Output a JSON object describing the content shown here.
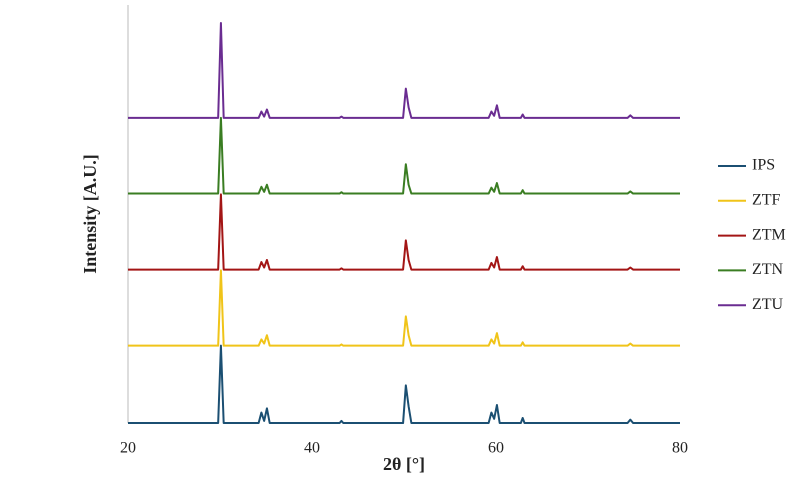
{
  "chart_data": {
    "type": "line",
    "x_label": "2θ [°]",
    "y_label": "Intensity [A.U.]",
    "xlim": [
      20,
      80
    ],
    "xticks": [
      20,
      40,
      60,
      80
    ],
    "ylim": [
      0,
      100
    ],
    "grid": false,
    "legend": "right",
    "x": [
      20,
      29.8,
      30.1,
      30.4,
      34.2,
      34.5,
      34.8,
      35.1,
      35.4,
      43,
      43.2,
      43.4,
      49.9,
      50.2,
      50.5,
      50.8,
      59.2,
      59.5,
      59.8,
      60.1,
      60.4,
      62.7,
      62.9,
      63.1,
      74.3,
      74.6,
      74.9,
      80
    ],
    "series": [
      {
        "name": "IPS",
        "color": "#1b4f72",
        "values": [
          0,
          0,
          18.5,
          0,
          0,
          2.5,
          0.5,
          3.5,
          0,
          0,
          0.5,
          0,
          0,
          9,
          4,
          0,
          0,
          2.5,
          1,
          4.3,
          0,
          0,
          1.2,
          0,
          0,
          0.8,
          0,
          0
        ]
      },
      {
        "name": "ZTF",
        "color": "#f0c419",
        "values": [
          18.5,
          18.5,
          36.5,
          18.5,
          18.5,
          20,
          19,
          21,
          18.5,
          18.5,
          18.8,
          18.5,
          18.5,
          25.5,
          21,
          18.5,
          18.5,
          20,
          19,
          21.5,
          18.5,
          18.5,
          19.3,
          18.5,
          18.5,
          19,
          18.5,
          18.5
        ]
      },
      {
        "name": "ZTM",
        "color": "#a31515",
        "values": [
          36.7,
          36.7,
          54.7,
          36.7,
          36.7,
          38.5,
          37.2,
          39,
          36.7,
          36.7,
          37,
          36.7,
          36.7,
          43.7,
          39,
          36.7,
          36.7,
          38.3,
          37.2,
          39.7,
          36.7,
          36.7,
          37.5,
          36.7,
          36.7,
          37.2,
          36.7,
          36.7
        ]
      },
      {
        "name": "ZTN",
        "color": "#3a7d22",
        "values": [
          54.9,
          54.9,
          73,
          54.9,
          54.9,
          56.5,
          55.3,
          57,
          54.9,
          54.9,
          55.2,
          54.9,
          54.9,
          61.9,
          57,
          54.9,
          54.9,
          56.3,
          55.3,
          57.4,
          54.9,
          54.9,
          55.7,
          54.9,
          54.9,
          55.4,
          54.9,
          54.9
        ]
      },
      {
        "name": "ZTU",
        "color": "#6a2c91",
        "values": [
          73,
          73,
          95.7,
          73,
          73,
          74.5,
          73.3,
          75,
          73,
          73,
          73.3,
          73,
          73,
          80,
          75.5,
          73,
          73,
          74.5,
          73.5,
          76,
          73,
          73,
          73.8,
          73,
          73,
          73.6,
          73,
          73
        ]
      }
    ]
  }
}
